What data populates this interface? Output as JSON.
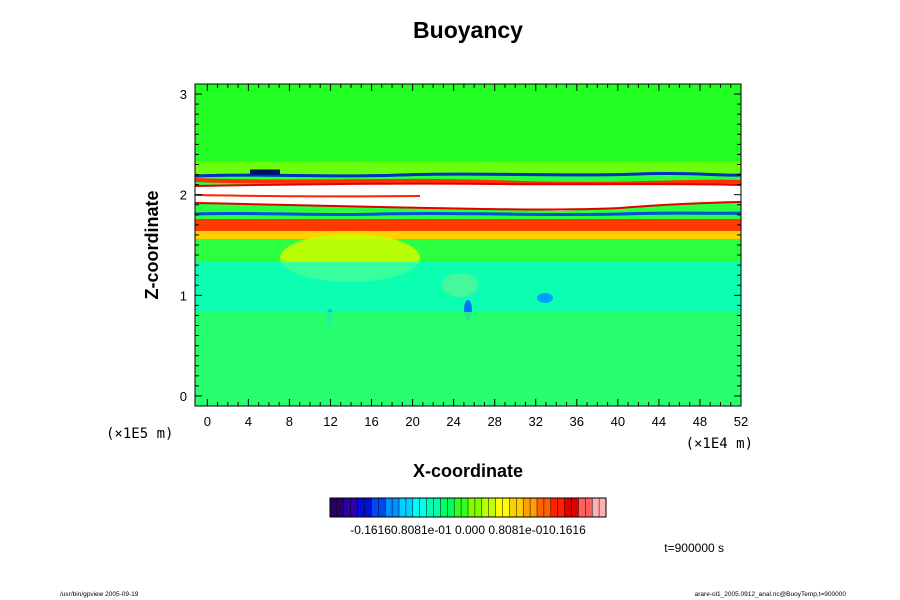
{
  "chart_data": {
    "type": "heatmap",
    "title": "Buoyancy",
    "xlabel": "X-coordinate",
    "ylabel": "Z-coordinate",
    "x_unit": "(×1E4 m)",
    "y_unit": "(×1E5 m)",
    "xlim": [
      -1.2,
      52
    ],
    "ylim": [
      -0.1,
      3.1
    ],
    "x_ticks": [
      "0",
      "4",
      "8",
      "12",
      "16",
      "20",
      "24",
      "28",
      "32",
      "36",
      "40",
      "44",
      "48",
      "52"
    ],
    "y_ticks": [
      "0",
      "1",
      "2",
      "3"
    ],
    "colorbar": {
      "min": -0.1616,
      "max": 0.1616,
      "label_text": "-0.16160.8081e-01 0.000 0.8081e-010.1616",
      "colors": [
        "#2a0066",
        "#2d00a8",
        "#0010d8",
        "#0048f0",
        "#0090ff",
        "#00d0ff",
        "#00ffee",
        "#00ffb0",
        "#00ff60",
        "#30ff20",
        "#80ff00",
        "#c0ff00",
        "#ffff00",
        "#ffd000",
        "#ffa000",
        "#ff6000",
        "#ff2000",
        "#e00000",
        "#ff6060",
        "#ffb0b0"
      ]
    },
    "features": [
      {
        "name": "background",
        "value": 0.0,
        "note": "green field"
      },
      {
        "name": "strong positive layer",
        "z_range": [
          1.8,
          2.1
        ],
        "value": 0.16
      },
      {
        "name": "negative streaks",
        "z": [
          1.78,
          2.2
        ],
        "value": -0.15
      },
      {
        "name": "weak negative lower layer",
        "z_range": [
          0.9,
          1.3
        ],
        "value": -0.04
      },
      {
        "name": "positive band",
        "z_range": [
          1.6,
          1.75
        ],
        "value": 0.09
      }
    ],
    "annotation": "t=900000 s"
  },
  "footer": {
    "left": "/usr/bin/gpview 2005-09-19",
    "right": "arare-ol1_2005.0912_anal.nc@BuoyTemp,t=900000"
  }
}
